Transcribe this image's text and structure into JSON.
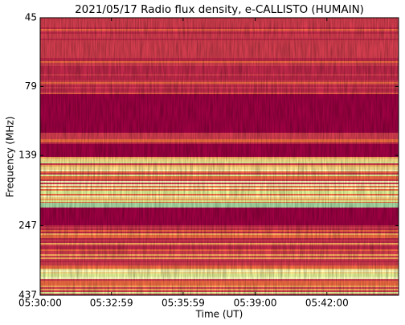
{
  "chart_data": {
    "type": "spectrogram",
    "title": "2021/05/17  Radio flux density, e-CALLISTO (HUMAIN)",
    "xlabel": "Time (UT)",
    "ylabel": "Frequency (MHz)",
    "xlim": [
      19800,
      20700
    ],
    "xticks": [
      {
        "value": 19800,
        "label": "05:30:00"
      },
      {
        "value": 19979,
        "label": "05:32:59"
      },
      {
        "value": 20159,
        "label": "05:35:59"
      },
      {
        "value": 20340,
        "label": "05:39:00"
      },
      {
        "value": 20520,
        "label": "05:42:00"
      }
    ],
    "ylim": [
      437,
      45
    ],
    "yticks": [
      45,
      79,
      139,
      247,
      437
    ],
    "ylog": true
  }
}
